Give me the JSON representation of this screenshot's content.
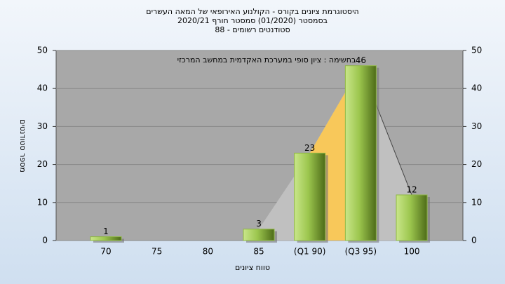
{
  "chart_data": {
    "type": "bar",
    "title_lines": [
      "היסטוגרמת ציונים בקורס - הקולנוע האירופאי של המאה העשרים",
      "בסמסטר  (01/2020)  סמסטר חורף 2020/21",
      "סטודנטים רשומים - 88"
    ],
    "annotation": "בחשימה : ציון סופי במערכת האקדמית במחשב המרכזי",
    "x_label": "טווח ציונים",
    "y_label": "מספר סטודנטים",
    "categories": [
      "70",
      "75",
      "80",
      "85",
      "(Q1 90)",
      "(Q3 95)",
      "100"
    ],
    "values": [
      1,
      0,
      0,
      3,
      23,
      46,
      12
    ],
    "color": "#8fb843",
    "ylim": [
      0,
      50
    ],
    "yticks": [
      0,
      10,
      20,
      30,
      40,
      50
    ],
    "y2lim": [
      0,
      50
    ],
    "y2ticks": [
      0,
      10,
      20,
      30,
      40,
      50
    ],
    "grid": true
  }
}
